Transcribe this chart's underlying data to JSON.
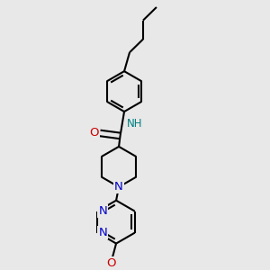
{
  "background_color": "#e8e8e8",
  "bond_color": "#000000",
  "bond_width": 1.5,
  "figsize": [
    3.0,
    3.0
  ],
  "dpi": 100,
  "colors": {
    "N": "#0000cc",
    "O": "#cc0000",
    "NH": "#008080",
    "C": "#000000"
  },
  "xlim": [
    0.15,
    0.85
  ],
  "ylim": [
    0.02,
    0.98
  ]
}
